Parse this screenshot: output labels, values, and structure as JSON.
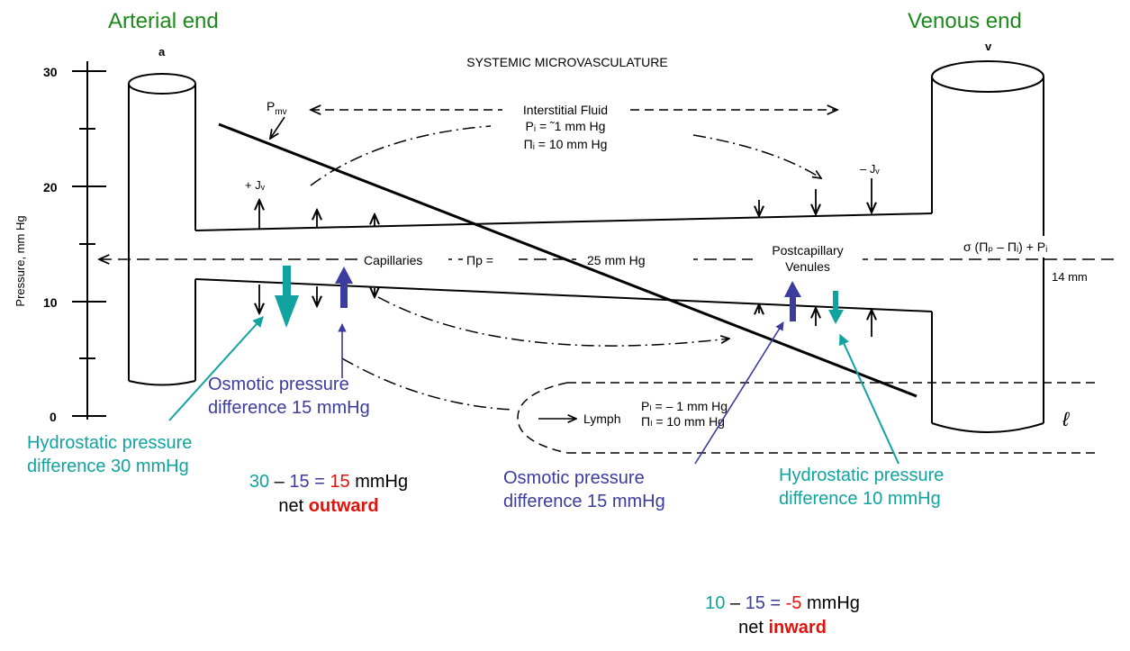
{
  "header": {
    "arterial_label": "Arterial end",
    "venous_label": "Venous end"
  },
  "scan": {
    "title": "SYSTEMIC MICROVASCULATURE",
    "vessel_a": "a",
    "vessel_v": "v",
    "y_axis_label": "Pressure, mm Hg",
    "y_ticks": [
      "30",
      "20",
      "10",
      "0"
    ],
    "pmv": "P",
    "pmv_sub": "mv",
    "interstitial_title": "Interstitial Fluid",
    "pi_line": "Pᵢ = ˜1 mm Hg",
    "pii_line": "Πᵢ = 10 mm Hg",
    "plus_jv": "+ Jᵥ",
    "minus_jv": "– Jᵥ",
    "capillaries": "Capillaries",
    "pi_p": "Πp =",
    "cap_pressure": "25 mm Hg",
    "postcapillary": "Postcapillary",
    "venules": "Venules",
    "sigma_formula": "σ (Πₚ – Πᵢ) + Pᵢ",
    "fourteen": "14 mm",
    "lymph": "Lymph",
    "pl_line": "Pₗ = – 1 mm Hg",
    "pil_line": "Πₗ = 10 mm Hg",
    "ell": "ℓ"
  },
  "annotations": {
    "hydro_arterial": [
      "Hydrostatic pressure",
      "difference 30 mmHg"
    ],
    "osmotic_arterial": [
      "Osmotic pressure",
      "difference 15 mmHg"
    ],
    "osmotic_venous": [
      "Osmotic pressure",
      "difference 15 mmHg"
    ],
    "hydro_venous": [
      "Hydrostatic pressure",
      "difference 10 mmHg"
    ]
  },
  "calc_arterial": {
    "hydro": "30",
    "dash": " – ",
    "osmotic": "15",
    "eq": " = ",
    "result": "15",
    "unit": " mmHg",
    "net": "net ",
    "direction": "outward"
  },
  "calc_venous": {
    "hydro": "10",
    "dash": " – ",
    "osmotic": "15",
    "eq": " = ",
    "result": "-5",
    "unit": " mmHg",
    "net": "net ",
    "direction": "inward"
  },
  "colors": {
    "teal": "#11a3a0",
    "navy": "#3c3c9e",
    "red": "#e3120b",
    "green": "#1b8a1b"
  }
}
